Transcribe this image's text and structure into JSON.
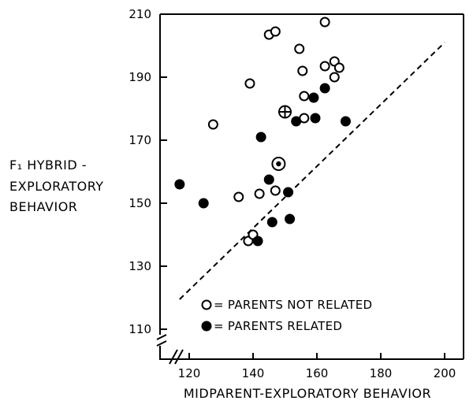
{
  "chart_data": {
    "type": "scatter",
    "title": "",
    "xlabel": "MIDPARENT-EXPLORATORY BEHAVIOR",
    "ylabel_lines": [
      "F₁ HYBRID -",
      "EXPLORATORY",
      "BEHAVIOR"
    ],
    "xlim": [
      110,
      200
    ],
    "ylim": [
      105,
      210
    ],
    "x_ticks": [
      120,
      140,
      160,
      180,
      200
    ],
    "y_ticks": [
      110,
      130,
      150,
      170,
      190,
      210
    ],
    "grid": false,
    "legend": {
      "placement": "bottom-right",
      "entries": [
        {
          "marker": "open-circle",
          "label": "= PARENTS NOT RELATED"
        },
        {
          "marker": "filled-circle",
          "label": "= PARENTS RELATED"
        }
      ]
    },
    "reference_line": {
      "style": "dashed",
      "from": [
        117,
        119.5
      ],
      "to": [
        200,
        201
      ]
    },
    "series": [
      {
        "marker": "open-circle",
        "points": [
          [
            145,
            203.5
          ],
          [
            147,
            204.5
          ],
          [
            162.5,
            207.5
          ],
          [
            154.5,
            199
          ],
          [
            162.5,
            193.5
          ],
          [
            165.5,
            195
          ],
          [
            167,
            193
          ],
          [
            165.5,
            190
          ],
          [
            155.5,
            192
          ],
          [
            139,
            188
          ],
          [
            156,
            184
          ],
          [
            127.5,
            175
          ],
          [
            156,
            177
          ],
          [
            138.5,
            138
          ],
          [
            140,
            140
          ],
          [
            135.5,
            152
          ],
          [
            142,
            153
          ],
          [
            147,
            154
          ]
        ]
      },
      {
        "marker": "filled-circle",
        "points": [
          [
            159,
            183.5
          ],
          [
            162.5,
            186.5
          ],
          [
            153.5,
            176
          ],
          [
            159.5,
            177
          ],
          [
            169,
            176
          ],
          [
            142.5,
            171
          ],
          [
            145,
            157.5
          ],
          [
            151,
            153.5
          ],
          [
            117,
            156
          ],
          [
            124.5,
            150
          ],
          [
            146,
            144
          ],
          [
            151.5,
            145
          ],
          [
            141.5,
            138
          ]
        ]
      },
      {
        "marker": "crossed-circle",
        "points": [
          [
            150,
            179
          ]
        ]
      },
      {
        "marker": "dotted-circle",
        "points": [
          [
            148,
            162.5
          ]
        ]
      }
    ]
  }
}
